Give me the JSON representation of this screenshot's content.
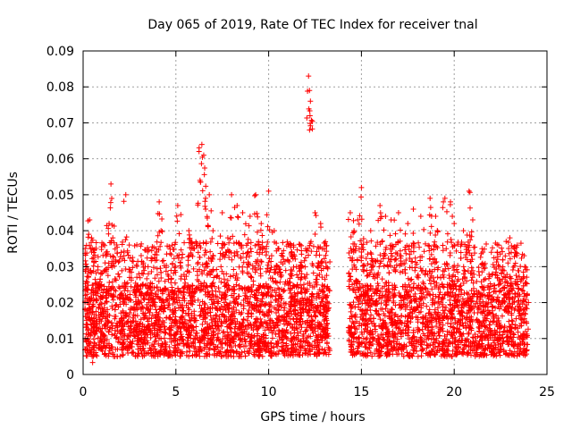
{
  "chart_data": {
    "type": "scatter",
    "title": "Day 065 of 2019, Rate Of TEC Index for receiver tnal",
    "xlabel": "GPS time / hours",
    "ylabel": "ROTI / TECUs",
    "xlim": [
      0,
      25
    ],
    "ylim": [
      0,
      0.09
    ],
    "xticks": [
      0,
      5,
      10,
      15,
      20,
      25
    ],
    "xtick_labels": [
      "0",
      "5",
      "10",
      "15",
      "20",
      "25"
    ],
    "yticks": [
      0,
      0.01,
      0.02,
      0.03,
      0.04,
      0.05,
      0.06,
      0.07,
      0.08,
      0.09
    ],
    "ytick_labels": [
      "0",
      "0.01",
      "0.02",
      "0.03",
      "0.04",
      "0.05",
      "0.06",
      "0.07",
      "0.08",
      "0.09"
    ],
    "grid": true,
    "marker": "+",
    "color": "#ff0000",
    "data_gap_hours": [
      13.3,
      14.3
    ],
    "series": [
      {
        "name": "ROTI",
        "points": [
          [
            0.1,
            0.02
          ],
          [
            0.2,
            0.03
          ],
          [
            0.3,
            0.039
          ],
          [
            0.35,
            0.043
          ],
          [
            0.4,
            0.035
          ],
          [
            0.5,
            0.015
          ],
          [
            0.8,
            0.03
          ],
          [
            1.0,
            0.025
          ],
          [
            1.4,
            0.042
          ],
          [
            1.5,
            0.053
          ],
          [
            1.6,
            0.038
          ],
          [
            2.2,
            0.033
          ],
          [
            2.3,
            0.05
          ],
          [
            2.5,
            0.027
          ],
          [
            3.0,
            0.028
          ],
          [
            3.5,
            0.03
          ],
          [
            4.1,
            0.048
          ],
          [
            4.2,
            0.04
          ],
          [
            4.8,
            0.036
          ],
          [
            5.1,
            0.047
          ],
          [
            5.7,
            0.04
          ],
          [
            6.0,
            0.035
          ],
          [
            6.3,
            0.054
          ],
          [
            6.4,
            0.064
          ],
          [
            6.5,
            0.061
          ],
          [
            6.6,
            0.049
          ],
          [
            6.8,
            0.05
          ],
          [
            7.0,
            0.04
          ],
          [
            7.5,
            0.045
          ],
          [
            7.8,
            0.038
          ],
          [
            8.0,
            0.05
          ],
          [
            8.3,
            0.047
          ],
          [
            8.6,
            0.045
          ],
          [
            9.0,
            0.044
          ],
          [
            9.3,
            0.05
          ],
          [
            9.6,
            0.042
          ],
          [
            9.8,
            0.035
          ],
          [
            10.0,
            0.051
          ],
          [
            10.3,
            0.04
          ],
          [
            10.5,
            0.035
          ],
          [
            10.8,
            0.032
          ],
          [
            11.2,
            0.028
          ],
          [
            11.5,
            0.03
          ],
          [
            12.0,
            0.035
          ],
          [
            12.15,
            0.083
          ],
          [
            12.2,
            0.079
          ],
          [
            12.25,
            0.076
          ],
          [
            12.5,
            0.045
          ],
          [
            12.8,
            0.042
          ],
          [
            13.1,
            0.03
          ],
          [
            14.4,
            0.045
          ],
          [
            14.6,
            0.04
          ],
          [
            14.8,
            0.043
          ],
          [
            15.0,
            0.052
          ],
          [
            15.5,
            0.04
          ],
          [
            16.0,
            0.047
          ],
          [
            16.3,
            0.044
          ],
          [
            16.6,
            0.043
          ],
          [
            17.0,
            0.045
          ],
          [
            17.5,
            0.042
          ],
          [
            17.8,
            0.046
          ],
          [
            18.2,
            0.044
          ],
          [
            18.7,
            0.049
          ],
          [
            19.0,
            0.044
          ],
          [
            19.5,
            0.049
          ],
          [
            19.8,
            0.048
          ],
          [
            20.0,
            0.042
          ],
          [
            20.5,
            0.04
          ],
          [
            20.8,
            0.051
          ],
          [
            21.0,
            0.043
          ],
          [
            21.5,
            0.035
          ],
          [
            22.0,
            0.034
          ],
          [
            22.4,
            0.036
          ],
          [
            22.8,
            0.037
          ],
          [
            23.0,
            0.038
          ],
          [
            23.4,
            0.036
          ],
          [
            23.8,
            0.03
          ],
          [
            24.0,
            0.02
          ]
        ],
        "baseline_band": [
          0.005,
          0.025
        ]
      }
    ]
  }
}
